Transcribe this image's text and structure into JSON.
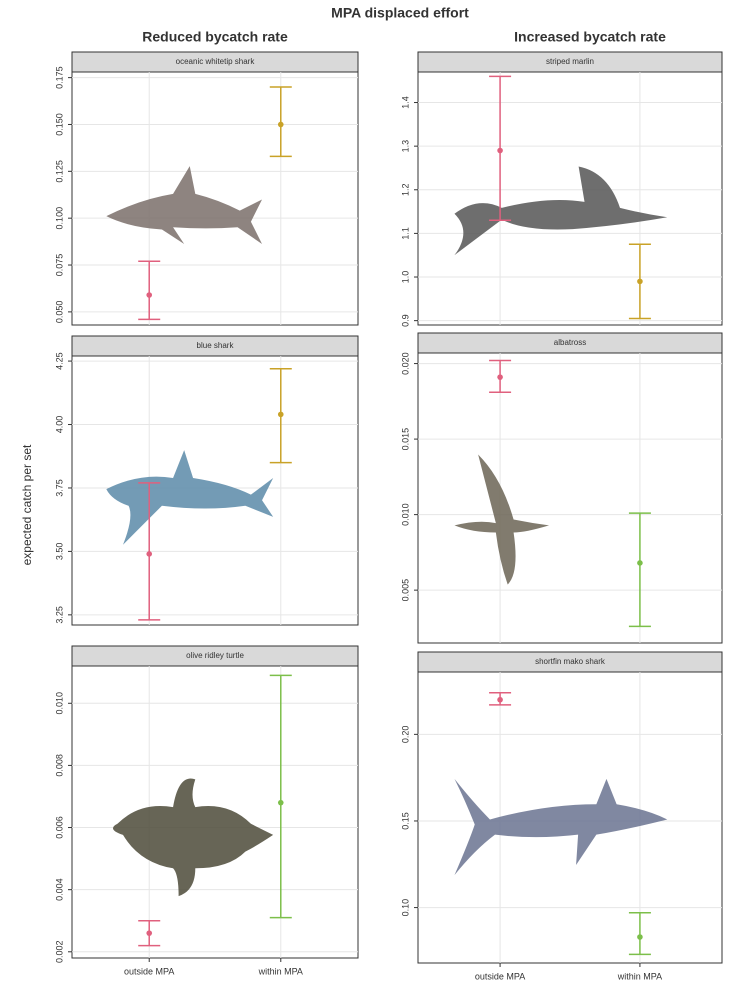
{
  "header": {
    "title": "MPA displaced effort",
    "columns": [
      "Reduced bycatch rate",
      "Increased bycatch rate"
    ],
    "y_label": "expected catch per set"
  },
  "chart_data": [
    {
      "type": "errorbar",
      "title": "oceanic whitetip shark",
      "categories": [
        null,
        null
      ],
      "values": [
        0.059,
        0.15
      ],
      "lower": [
        0.046,
        0.133
      ],
      "upper": [
        0.077,
        0.17
      ],
      "colors": [
        "#e0607e",
        "#c9a227"
      ],
      "ylim": [
        0.043,
        0.178
      ],
      "yticks": [
        {
          "value": 0.05,
          "label": "0.050"
        },
        0.075,
        {
          "value": 0.1,
          "label": "0.100"
        },
        0.125,
        {
          "value": 0.15,
          "label": "0.150"
        },
        0.175
      ],
      "grid": true
    },
    {
      "type": "errorbar",
      "title": "striped marlin",
      "categories": [
        null,
        null
      ],
      "values": [
        1.29,
        0.99
      ],
      "lower": [
        1.13,
        0.905
      ],
      "upper": [
        1.46,
        1.075
      ],
      "colors": [
        "#e0607e",
        "#c9a227"
      ],
      "ylim": [
        0.89,
        1.47
      ],
      "yticks": [
        0.9,
        {
          "value": 1.0,
          "label": "1.0"
        },
        1.1,
        1.2,
        1.3,
        1.4
      ],
      "grid": true
    },
    {
      "type": "errorbar",
      "title": "blue shark",
      "categories": [
        null,
        null
      ],
      "values": [
        3.49,
        4.04
      ],
      "lower": [
        3.23,
        3.85
      ],
      "upper": [
        3.77,
        4.22
      ],
      "colors": [
        "#e0607e",
        "#c9a227"
      ],
      "ylim": [
        3.21,
        4.27
      ],
      "yticks": [
        3.25,
        {
          "value": 3.5,
          "label": "3.50"
        },
        3.75,
        {
          "value": 4.0,
          "label": "4.00"
        },
        4.25
      ],
      "grid": true
    },
    {
      "type": "errorbar",
      "title": "albatross",
      "categories": [
        null,
        null
      ],
      "values": [
        0.0191,
        0.0068
      ],
      "lower": [
        0.0181,
        0.0026
      ],
      "upper": [
        0.0202,
        0.0101
      ],
      "colors": [
        "#e0607e",
        "#7cbf4a"
      ],
      "ylim": [
        0.0015,
        0.0207
      ],
      "yticks": [
        0.005,
        {
          "value": 0.01,
          "label": "0.010"
        },
        0.015,
        {
          "value": 0.02,
          "label": "0.020"
        }
      ],
      "grid": true
    },
    {
      "type": "errorbar",
      "title": "olive ridley turtle",
      "categories": [
        "outside MPA",
        "within MPA"
      ],
      "values": [
        0.0026,
        0.0068
      ],
      "lower": [
        0.0022,
        0.0031
      ],
      "upper": [
        0.003,
        0.0109
      ],
      "colors": [
        "#e0607e",
        "#7cbf4a"
      ],
      "ylim": [
        0.0018,
        0.0112
      ],
      "yticks": [
        {
          "value": 0.002,
          "label": "0.002"
        },
        {
          "value": 0.004,
          "label": "0.004"
        },
        {
          "value": 0.006,
          "label": "0.006"
        },
        {
          "value": 0.008,
          "label": "0.008"
        },
        {
          "value": 0.01,
          "label": "0.010"
        }
      ],
      "grid": true
    },
    {
      "type": "errorbar",
      "title": "shortfin mako shark",
      "categories": [
        "outside MPA",
        "within MPA"
      ],
      "values": [
        0.22,
        0.083
      ],
      "lower": [
        0.217,
        0.073
      ],
      "upper": [
        0.224,
        0.097
      ],
      "colors": [
        "#e0607e",
        "#7cbf4a"
      ],
      "ylim": [
        0.068,
        0.236
      ],
      "yticks": [
        {
          "value": 0.1,
          "label": "0.10"
        },
        0.15,
        {
          "value": 0.2,
          "label": "0.20"
        }
      ],
      "grid": true
    }
  ]
}
